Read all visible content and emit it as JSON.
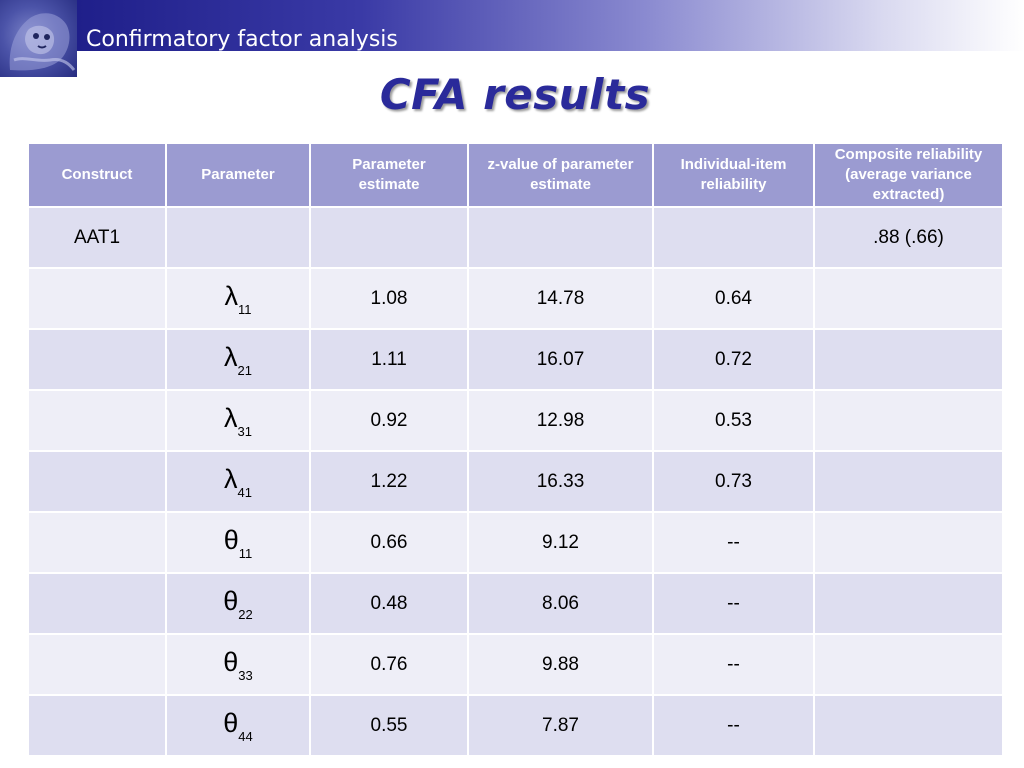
{
  "header": {
    "title": "Confirmatory factor analysis"
  },
  "slide": {
    "title": "CFA results"
  },
  "table": {
    "columns": [
      "Construct",
      "Parameter",
      "Parameter estimate",
      "z-value of parameter estimate",
      "Individual-item reliability",
      "Composite reliability (average variance extracted)"
    ],
    "rows": [
      {
        "construct": "AAT1",
        "param_symbol": "",
        "param_sub": "",
        "estimate": "",
        "z_value": "",
        "item_reliability": "",
        "composite": ".88 (.66)"
      },
      {
        "construct": "",
        "param_symbol": "λ",
        "param_sub": "11",
        "estimate": "1.08",
        "z_value": "14.78",
        "item_reliability": "0.64",
        "composite": ""
      },
      {
        "construct": "",
        "param_symbol": "λ",
        "param_sub": "21",
        "estimate": "1.11",
        "z_value": "16.07",
        "item_reliability": "0.72",
        "composite": ""
      },
      {
        "construct": "",
        "param_symbol": "λ",
        "param_sub": "31",
        "estimate": "0.92",
        "z_value": "12.98",
        "item_reliability": "0.53",
        "composite": ""
      },
      {
        "construct": "",
        "param_symbol": "λ",
        "param_sub": "41",
        "estimate": "1.22",
        "z_value": "16.33",
        "item_reliability": "0.73",
        "composite": ""
      },
      {
        "construct": "",
        "param_symbol": "θ",
        "param_sub": "11",
        "estimate": "0.66",
        "z_value": "9.12",
        "item_reliability": "--",
        "composite": ""
      },
      {
        "construct": "",
        "param_symbol": "θ",
        "param_sub": "22",
        "estimate": "0.48",
        "z_value": "8.06",
        "item_reliability": "--",
        "composite": ""
      },
      {
        "construct": "",
        "param_symbol": "θ",
        "param_sub": "33",
        "estimate": "0.76",
        "z_value": "9.88",
        "item_reliability": "--",
        "composite": ""
      },
      {
        "construct": "",
        "param_symbol": "θ",
        "param_sub": "44",
        "estimate": "0.55",
        "z_value": "7.87",
        "item_reliability": "--",
        "composite": ""
      }
    ]
  },
  "colors": {
    "header_gradient_start": "#1f1f8a",
    "title": "#2a2a9a",
    "table_header": "#9b9bd1",
    "row_dark": "#dedef0",
    "row_light": "#eeeef7"
  },
  "icons": {
    "logo": "lion-shrine-logo-icon"
  }
}
